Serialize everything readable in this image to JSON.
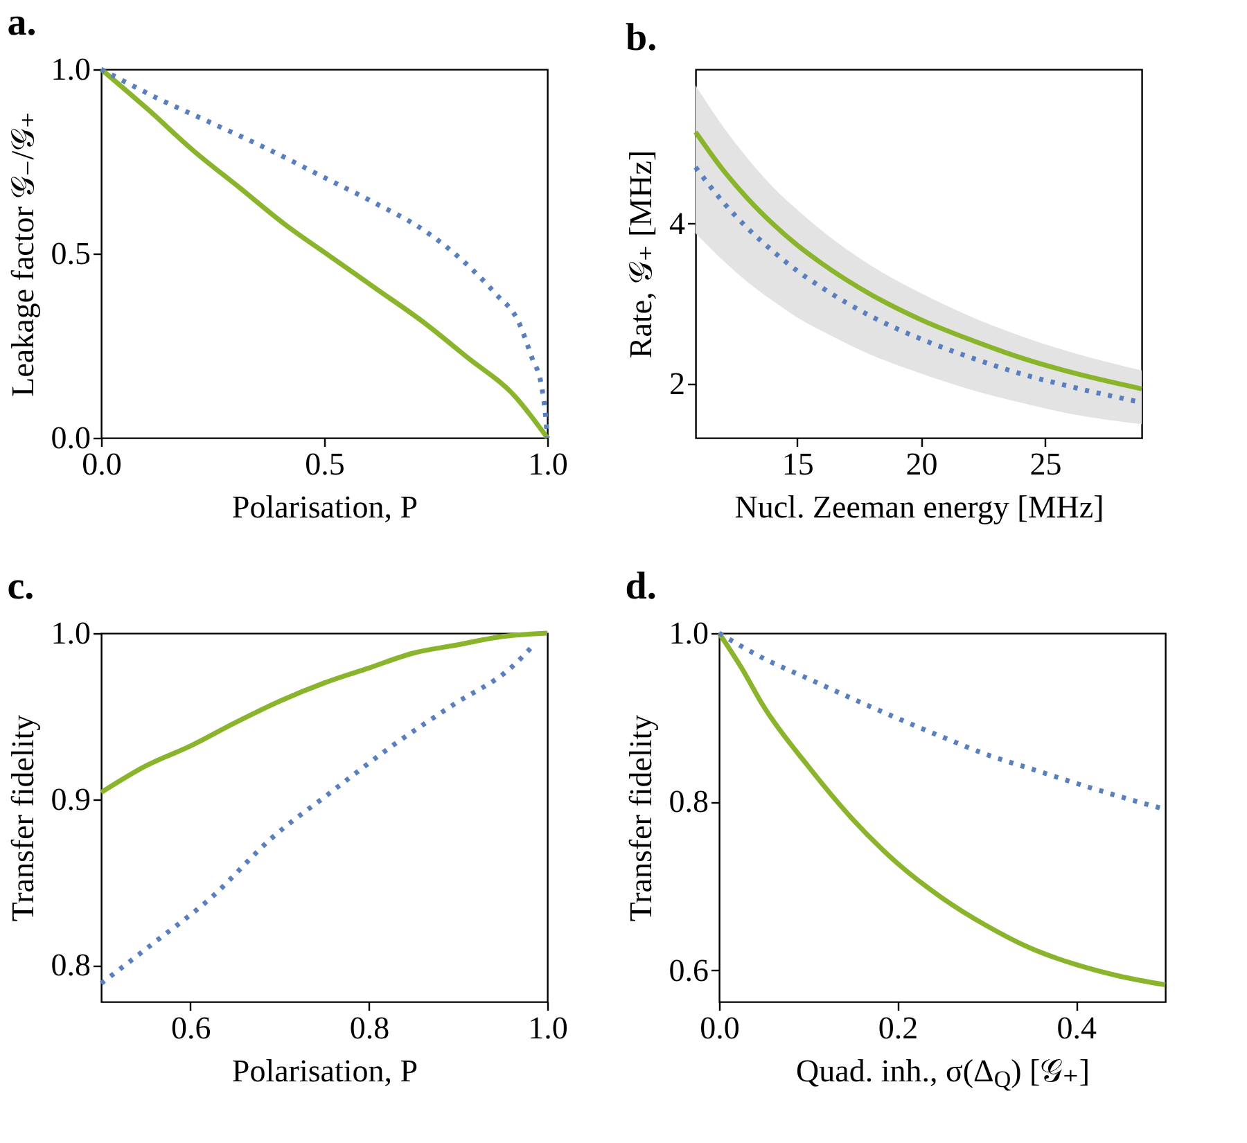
{
  "chart_data": [
    {
      "type": "line",
      "title": "a.",
      "xlabel": "Polarisation, P",
      "ylabel": "Leakage factor 𝒢₋/𝒢₊",
      "xlim": [
        0,
        1
      ],
      "ylim": [
        0,
        1
      ],
      "xticks": [
        {
          "value": 0,
          "label": "0.0"
        },
        0.5,
        {
          "value": 1,
          "label": "1.0"
        }
      ],
      "yticks": [
        {
          "value": 0,
          "label": "0.0"
        },
        0.5,
        {
          "value": 1,
          "label": "1.0"
        }
      ],
      "series": [
        {
          "color": "#8ab42c",
          "line_style": "solid",
          "x": [
            0,
            0.105,
            0.207,
            0.31,
            0.412,
            0.515,
            0.617,
            0.72,
            0.823,
            0.925,
            1
          ],
          "values": [
            1,
            0.891,
            0.779,
            0.679,
            0.579,
            0.491,
            0.404,
            0.316,
            0.216,
            0.116,
            0
          ]
        },
        {
          "color": "#5a7fbe",
          "line_style": "dotted",
          "x": [
            0,
            0.033,
            0.125,
            0.248,
            0.371,
            0.494,
            0.617,
            0.72,
            0.812,
            0.884,
            0.935,
            0.966,
            0.987,
            0.997,
            1
          ],
          "values": [
            1,
            0.979,
            0.922,
            0.854,
            0.785,
            0.71,
            0.635,
            0.566,
            0.479,
            0.391,
            0.316,
            0.216,
            0.141,
            0.048,
            0
          ]
        }
      ]
    },
    {
      "type": "line",
      "title": "b.",
      "xlabel": "Nucl. Zeeman energy [MHz]",
      "ylabel": "Rate, 𝒢₊ [MHz]",
      "xlim": [
        10.9,
        28.9
      ],
      "ylim": [
        1.33,
        5.92
      ],
      "xticks": [
        15,
        20,
        25
      ],
      "yticks": [
        {
          "value": 2,
          "label": "2"
        },
        {
          "value": 4,
          "label": "4"
        }
      ],
      "x": [
        10.9,
        12,
        13,
        14,
        15,
        16,
        18,
        20,
        22,
        24,
        26,
        28.9
      ],
      "series": [
        {
          "color": "#8ab42c",
          "line_style": "solid",
          "values": [
            5.14,
            4.67,
            4.31,
            4.0,
            3.73,
            3.5,
            3.11,
            2.8,
            2.55,
            2.33,
            2.15,
            1.94
          ],
          "lower": [
            3.88,
            3.54,
            3.27,
            3.04,
            2.83,
            2.66,
            2.36,
            2.13,
            1.93,
            1.77,
            1.63,
            1.5
          ],
          "upper": [
            5.72,
            5.21,
            4.81,
            4.46,
            4.17,
            3.91,
            3.47,
            3.13,
            2.84,
            2.6,
            2.4,
            2.17
          ]
        },
        {
          "color": "#5a7fbe",
          "line_style": "dotted",
          "values": [
            4.7,
            4.27,
            3.94,
            3.66,
            3.41,
            3.2,
            2.84,
            2.56,
            2.33,
            2.13,
            1.97,
            1.77
          ]
        }
      ]
    },
    {
      "type": "line",
      "title": "c.",
      "xlabel": "Polarisation, P",
      "ylabel": "Transfer fidelity",
      "xlim": [
        0.5,
        1
      ],
      "ylim": [
        0.778,
        1
      ],
      "xticks": [
        {
          "value": 0.6,
          "label": "0.6"
        },
        {
          "value": 0.8,
          "label": "0.8"
        },
        {
          "value": 1,
          "label": "1.0"
        }
      ],
      "yticks": [
        {
          "value": 0.8,
          "label": "0.8"
        },
        {
          "value": 0.9,
          "label": "0.9"
        },
        {
          "value": 1,
          "label": "1.0"
        }
      ],
      "series": [
        {
          "color": "#8ab42c",
          "line_style": "solid",
          "x": [
            0.5,
            0.55,
            0.6,
            0.65,
            0.7,
            0.75,
            0.8,
            0.85,
            0.9,
            0.95,
            1
          ],
          "values": [
            0.904,
            0.92,
            0.932,
            0.946,
            0.959,
            0.97,
            0.979,
            0.988,
            0.993,
            0.998,
            1
          ]
        },
        {
          "color": "#5a7fbe",
          "line_style": "dotted",
          "x": [
            0.5,
            0.558,
            0.624,
            0.69,
            0.757,
            0.826,
            0.895,
            0.961,
            0.985
          ],
          "values": [
            0.789,
            0.813,
            0.841,
            0.876,
            0.904,
            0.932,
            0.957,
            0.98,
            0.993
          ]
        }
      ]
    },
    {
      "type": "line",
      "title": "d.",
      "xlabel": "Quad. inh., σ(Δ$_{Q}$)  [𝒢₊]",
      "ylabel": "Transfer fidelity",
      "xlim": [
        0,
        0.5
      ],
      "ylim": [
        0.563,
        1
      ],
      "xticks": [
        {
          "value": 0,
          "label": "0.0"
        },
        {
          "value": 0.2,
          "label": "0.2"
        },
        {
          "value": 0.4,
          "label": "0.4"
        }
      ],
      "yticks": [
        {
          "value": 0.6,
          "label": "0.6"
        },
        {
          "value": 0.8,
          "label": "0.8"
        },
        {
          "value": 1,
          "label": "1.0"
        }
      ],
      "series": [
        {
          "color": "#8ab42c",
          "line_style": "solid",
          "x": [
            0,
            0.025,
            0.05,
            0.1,
            0.15,
            0.2,
            0.25,
            0.3,
            0.35,
            0.4,
            0.45,
            0.5
          ],
          "values": [
            1,
            0.959,
            0.913,
            0.842,
            0.779,
            0.727,
            0.686,
            0.653,
            0.626,
            0.607,
            0.593,
            0.583
          ]
        },
        {
          "color": "#5a7fbe",
          "line_style": "dotted",
          "x": [
            0,
            0.05,
            0.1,
            0.15,
            0.2,
            0.25,
            0.3,
            0.35,
            0.4,
            0.45,
            0.5
          ],
          "values": [
            1,
            0.97,
            0.946,
            0.922,
            0.899,
            0.877,
            0.856,
            0.839,
            0.822,
            0.806,
            0.791
          ]
        }
      ]
    }
  ]
}
